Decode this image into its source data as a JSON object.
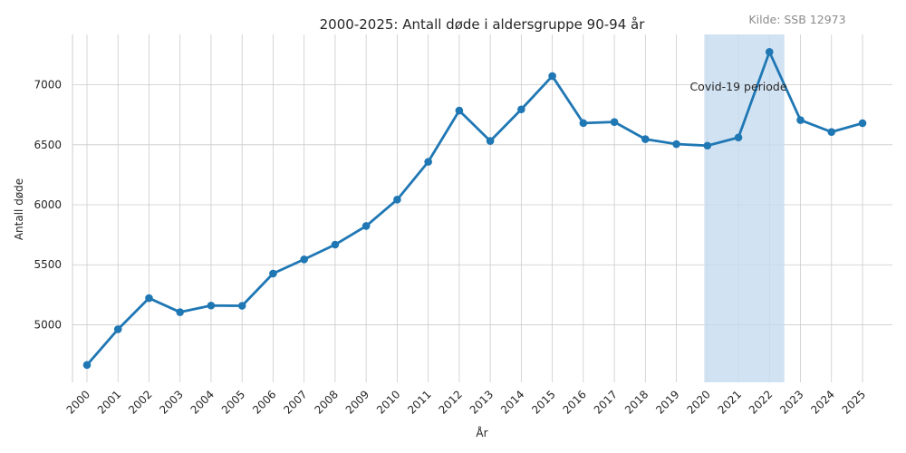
{
  "chart_data": {
    "type": "line",
    "title": "2000-2025: Antall døde i aldersgruppe 90-94 år",
    "source_note": "Kilde: SSB 12973",
    "xlabel": "År",
    "ylabel": "Antall døde",
    "x": [
      "2000",
      "2001",
      "2002",
      "2003",
      "2004",
      "2005",
      "2006",
      "2007",
      "2008",
      "2009",
      "2010",
      "2011",
      "2012",
      "2013",
      "2014",
      "2015",
      "2016",
      "2017",
      "2018",
      "2019",
      "2020",
      "2021",
      "2022",
      "2023",
      "2024",
      "2025"
    ],
    "values": [
      4665,
      4962,
      5222,
      5105,
      5160,
      5158,
      5427,
      5545,
      5668,
      5823,
      6043,
      6358,
      6785,
      6532,
      6795,
      7073,
      6681,
      6690,
      6547,
      6506,
      6493,
      6561,
      7274,
      6706,
      6607,
      6680
    ],
    "y_ticks": [
      5000,
      5500,
      6000,
      6500,
      7000
    ],
    "ylim": [
      4520,
      7420
    ],
    "grid": true,
    "line_color": "#1f77b4",
    "highlight": {
      "label": "Covid-19 periode",
      "from_year": 2020,
      "to_year": 2022,
      "color": "#c6dbef"
    }
  }
}
